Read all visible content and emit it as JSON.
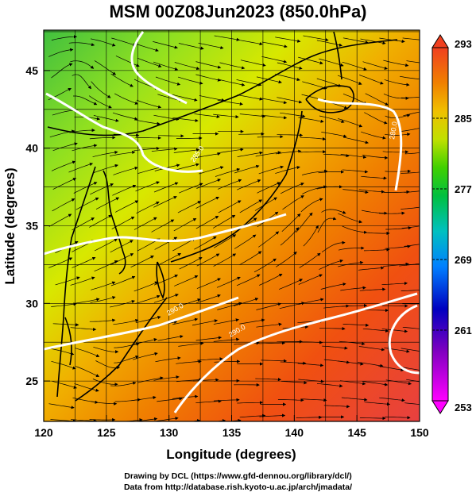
{
  "title": "MSM 00Z08Jun2023 (850.0hPa)",
  "axes": {
    "xlabel": "Longitude (degrees)",
    "ylabel": "Latitude  (degrees)",
    "x_ticks": [
      "120",
      "125",
      "130",
      "135",
      "140",
      "145",
      "150"
    ],
    "y_ticks": [
      "25",
      "30",
      "35",
      "40",
      "45"
    ],
    "xlim": [
      120,
      150
    ],
    "ylim": [
      22.4,
      47.6
    ]
  },
  "colorbar": {
    "ticks": [
      "293",
      "285",
      "277",
      "269",
      "261",
      "253"
    ],
    "min": 253,
    "max": 293,
    "unit_hint": "K"
  },
  "contour_labels": [
    "280.0",
    "285.0",
    "290.0",
    "290.0"
  ],
  "footer": {
    "line1": "Drawing by DCL (https://www.gfd-dennou.org/library/dcl/)",
    "line2": "Data from http://database.rish.kyoto-u.ac.jp/arch/jmadata/"
  },
  "colors": {
    "cold": "#ff00ff",
    "mid": "#00c000",
    "warm": "#ff4020",
    "contour": "#ffffff",
    "streamline": "#000000"
  }
}
